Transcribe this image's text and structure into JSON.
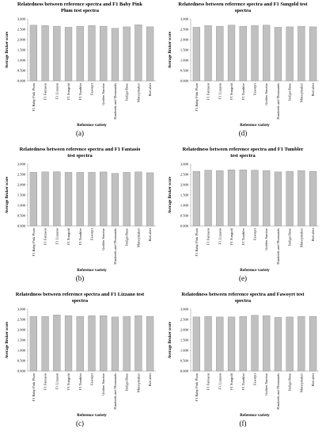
{
  "chart_data": [
    {
      "type": "bar",
      "title": "Relatedness between reference spectra and F1 Baby Pink Plum test spectra",
      "caption": "(a)",
      "x_label": "Reference variety",
      "y_label": "Average Bruker score",
      "categories": [
        "F1 Baby Pink Plum",
        "F1 Fantasio",
        "F1 Lizzano",
        "F1 Sungold",
        "F1 Tumbler",
        "Fawoyrt",
        "Golden Sunrise",
        "Hundreds and Thousands",
        "Indigo Rose",
        "Moneymaker",
        "Red alert"
      ],
      "values": [
        2.7,
        2.68,
        2.65,
        2.6,
        2.65,
        2.68,
        2.65,
        2.55,
        2.62,
        2.72,
        2.62
      ],
      "color": "#c0c0c0",
      "ylim": [
        0,
        3
      ],
      "yticks": [
        {
          "value": 0,
          "label": "0.000"
        },
        {
          "value": 0.5,
          "label": "0.500"
        },
        {
          "value": 1,
          "label": "1.000"
        },
        {
          "value": 1.5,
          "label": "1.500"
        },
        {
          "value": 2,
          "label": "2.000"
        },
        {
          "value": 2.5,
          "label": "2.500"
        },
        {
          "value": 3,
          "label": "3.000"
        }
      ]
    },
    {
      "type": "bar",
      "title": "Relatedness between reference spectra and F1 Fantasio test spectra",
      "caption": "(b)",
      "x_label": "Reference variety",
      "y_label": "Average Bruker score",
      "categories": [
        "F1 Baby Pink Plum",
        "F1 Fantasio",
        "F1 Lizzano",
        "F1 Sungold",
        "F1 Tumbler",
        "Fawoyrt",
        "Golden Sunrise",
        "Hundreds and Thousands",
        "Indigo Rose",
        "Moneymaker",
        "Red alert"
      ],
      "values": [
        2.6,
        2.62,
        2.63,
        2.6,
        2.6,
        2.6,
        2.62,
        2.55,
        2.6,
        2.62,
        2.58
      ],
      "color": "#c0c0c0",
      "ylim": [
        0,
        3
      ],
      "yticks": [
        {
          "value": 0,
          "label": "0.000"
        },
        {
          "value": 0.5,
          "label": "0.500"
        },
        {
          "value": 1,
          "label": "1.000"
        },
        {
          "value": 1.5,
          "label": "1.500"
        },
        {
          "value": 2,
          "label": "2.000"
        },
        {
          "value": 2.5,
          "label": "2.500"
        },
        {
          "value": 3,
          "label": "3.000"
        }
      ]
    },
    {
      "type": "bar",
      "title": "Relatedness between reference spectra and F1 Lizzano test spectra",
      "caption": "(c)",
      "x_label": "Reference variety",
      "y_label": "Average Bruker score",
      "categories": [
        "F1 Baby Pink Plum",
        "F1 Fantasio",
        "F1 Lizzano",
        "F1 Sungold",
        "F1 Tumbler",
        "Fawoyrt",
        "Golden Sunrise",
        "Hundreds and Thousands",
        "Indigo Rose",
        "Moneymaker",
        "Red alert"
      ],
      "values": [
        2.65,
        2.65,
        2.72,
        2.68,
        2.65,
        2.68,
        2.68,
        2.62,
        2.65,
        2.68,
        2.65
      ],
      "color": "#c0c0c0",
      "ylim": [
        0,
        3
      ],
      "yticks": [
        {
          "value": 0,
          "label": "0.000"
        },
        {
          "value": 0.5,
          "label": "0.500"
        },
        {
          "value": 1,
          "label": "1.000"
        },
        {
          "value": 1.5,
          "label": "1.500"
        },
        {
          "value": 2,
          "label": "2.000"
        },
        {
          "value": 2.5,
          "label": "2.500"
        },
        {
          "value": 3,
          "label": "3.000"
        }
      ]
    },
    {
      "type": "bar",
      "title": "Relatedness between reference spectra and F1 Sungold test spectra",
      "caption": "(d)",
      "x_label": "Reference variety",
      "y_label": "Average Bruker score",
      "categories": [
        "F1 Baby Pink Plum",
        "F1 Fantasio",
        "F1 Lizzano",
        "F1 Sungold",
        "F1 Tumbler",
        "Fawoyrt",
        "Golden Sunrise",
        "Hundreds and Thousands",
        "Indigo Rose",
        "Moneymaker",
        "Red alert"
      ],
      "values": [
        2.6,
        2.68,
        2.65,
        2.7,
        2.65,
        2.68,
        2.7,
        2.6,
        2.62,
        2.65,
        2.62
      ],
      "color": "#c0c0c0",
      "ylim": [
        0,
        3
      ],
      "yticks": [
        {
          "value": 0,
          "label": "0.000"
        },
        {
          "value": 0.5,
          "label": "0.500"
        },
        {
          "value": 1,
          "label": "1.000"
        },
        {
          "value": 1.5,
          "label": "1.500"
        },
        {
          "value": 2,
          "label": "2.000"
        },
        {
          "value": 2.5,
          "label": "2.500"
        },
        {
          "value": 3,
          "label": "3.000"
        }
      ]
    },
    {
      "type": "bar",
      "title": "Relatedness between reference spectra and F1 Tumbler test spectra",
      "caption": "(e)",
      "x_label": "Reference variety",
      "y_label": "Average Bruker score",
      "categories": [
        "F1 Baby Pink Plum",
        "F1 Fantasio",
        "F1 Lizzano",
        "F1 Sungold",
        "F1 Tumbler",
        "Fawoyrt",
        "Golden Sunrise",
        "Hundreds and Thousands",
        "Indigo Rose",
        "Moneymaker",
        "Red alert"
      ],
      "values": [
        2.65,
        2.7,
        2.68,
        2.72,
        2.72,
        2.7,
        2.68,
        2.62,
        2.65,
        2.68,
        2.65
      ],
      "color": "#c0c0c0",
      "ylim": [
        0,
        3
      ],
      "yticks": [
        {
          "value": 0,
          "label": "0.000"
        },
        {
          "value": 0.5,
          "label": "0.500"
        },
        {
          "value": 1,
          "label": "1.000"
        },
        {
          "value": 1.5,
          "label": "1.500"
        },
        {
          "value": 2,
          "label": "2.000"
        },
        {
          "value": 2.5,
          "label": "2.500"
        },
        {
          "value": 3,
          "label": "3.000"
        }
      ]
    },
    {
      "type": "bar",
      "title": "Relatedness between reference spectra and Fawoyrt test spectra",
      "caption": "(f)",
      "x_label": "Reference variety",
      "y_label": "Average Bruker score",
      "categories": [
        "F1 Baby Pink Plum",
        "F1 Fantasio",
        "F1 Lizzano",
        "F1 Sungold",
        "F1 Tumbler",
        "Fawoyrt",
        "Golden Sunrise",
        "Hundreds and Thousands",
        "Indigo Rose",
        "Moneymaker",
        "Red alert"
      ],
      "values": [
        2.62,
        2.65,
        2.62,
        2.62,
        2.65,
        2.7,
        2.68,
        2.6,
        2.62,
        2.65,
        2.65
      ],
      "color": "#c0c0c0",
      "ylim": [
        0,
        3
      ],
      "yticks": [
        {
          "value": 0,
          "label": "0.000"
        },
        {
          "value": 0.5,
          "label": "0.500"
        },
        {
          "value": 1,
          "label": "1.000"
        },
        {
          "value": 1.5,
          "label": "1.500"
        },
        {
          "value": 2,
          "label": "2.000"
        },
        {
          "value": 2.5,
          "label": "2.500"
        },
        {
          "value": 3,
          "label": "3.000"
        }
      ]
    }
  ]
}
